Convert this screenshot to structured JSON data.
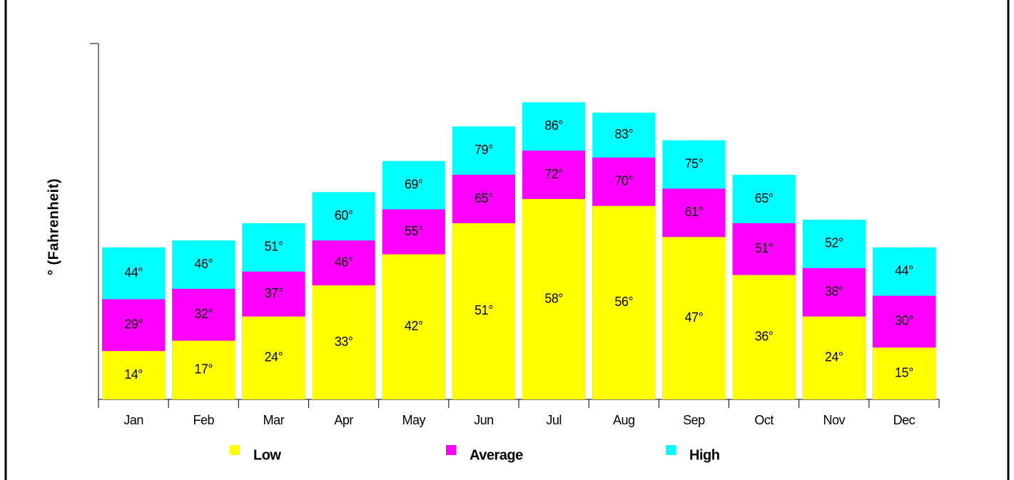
{
  "chart_data": {
    "type": "bar",
    "y_label": "° (Fahrenheit)",
    "categories": [
      "Jan",
      "Feb",
      "Mar",
      "Apr",
      "May",
      "Jun",
      "Jul",
      "Aug",
      "Sep",
      "Oct",
      "Nov",
      "Dec"
    ],
    "series": [
      {
        "name": "Low",
        "color": "#ffff00",
        "values": [
          14,
          17,
          24,
          33,
          42,
          51,
          58,
          56,
          47,
          36,
          24,
          15
        ],
        "value_labels": [
          "14°",
          "17°",
          "24°",
          "33°",
          "42°",
          "51°",
          "58°",
          "56°",
          "47°",
          "36°",
          "24°",
          "15°"
        ]
      },
      {
        "name": "Average",
        "color": "#ff00ff",
        "values": [
          29,
          32,
          37,
          46,
          55,
          65,
          72,
          70,
          61,
          51,
          38,
          30
        ],
        "value_labels": [
          "29°",
          "32°",
          "37°",
          "46°",
          "55°",
          "65°",
          "72°",
          "70°",
          "61°",
          "51°",
          "38°",
          "30°"
        ]
      },
      {
        "name": "High",
        "color": "#00ffff",
        "values": [
          44,
          46,
          51,
          60,
          69,
          79,
          86,
          83,
          75,
          65,
          52,
          44
        ],
        "value_labels": [
          "44°",
          "46°",
          "51°",
          "60°",
          "69°",
          "79°",
          "86°",
          "83°",
          "75°",
          "65°",
          "52°",
          "44°"
        ]
      }
    ],
    "ylim": [
      0,
      103
    ]
  }
}
